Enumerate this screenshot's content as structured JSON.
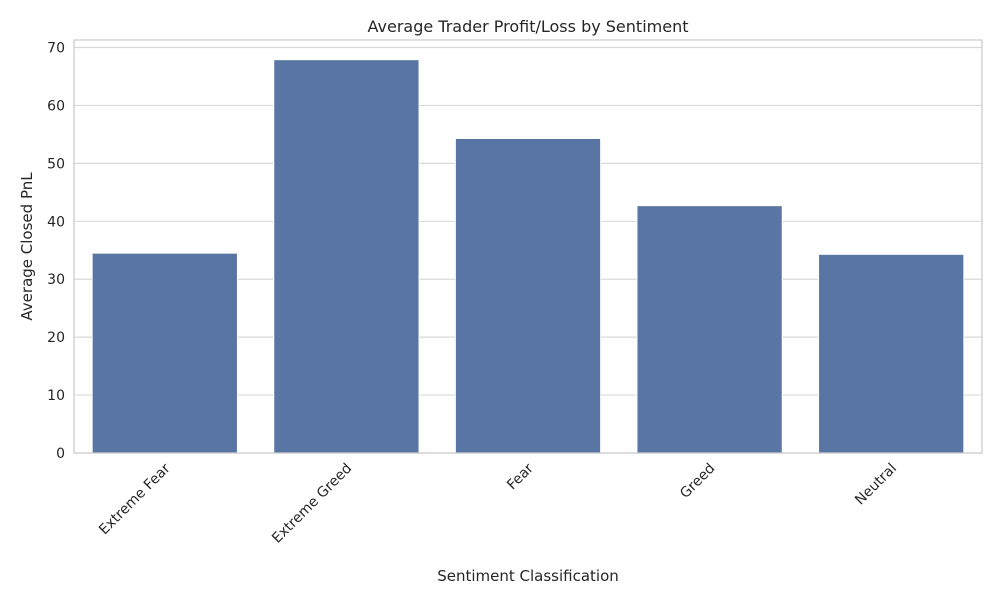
{
  "chart_data": {
    "type": "bar",
    "title": "Average Trader Profit/Loss by Sentiment",
    "xlabel": "Sentiment Classification",
    "ylabel": "Average Closed PnL",
    "categories": [
      "Extreme Fear",
      "Extreme Greed",
      "Fear",
      "Greed",
      "Neutral"
    ],
    "values": [
      34.5,
      67.9,
      54.3,
      42.7,
      34.3
    ],
    "ylim": [
      0,
      71.3
    ],
    "yticks": [
      0,
      10,
      20,
      30,
      40,
      50,
      60,
      70
    ],
    "grid": "horizontal",
    "bar_color": "#5975a4"
  }
}
